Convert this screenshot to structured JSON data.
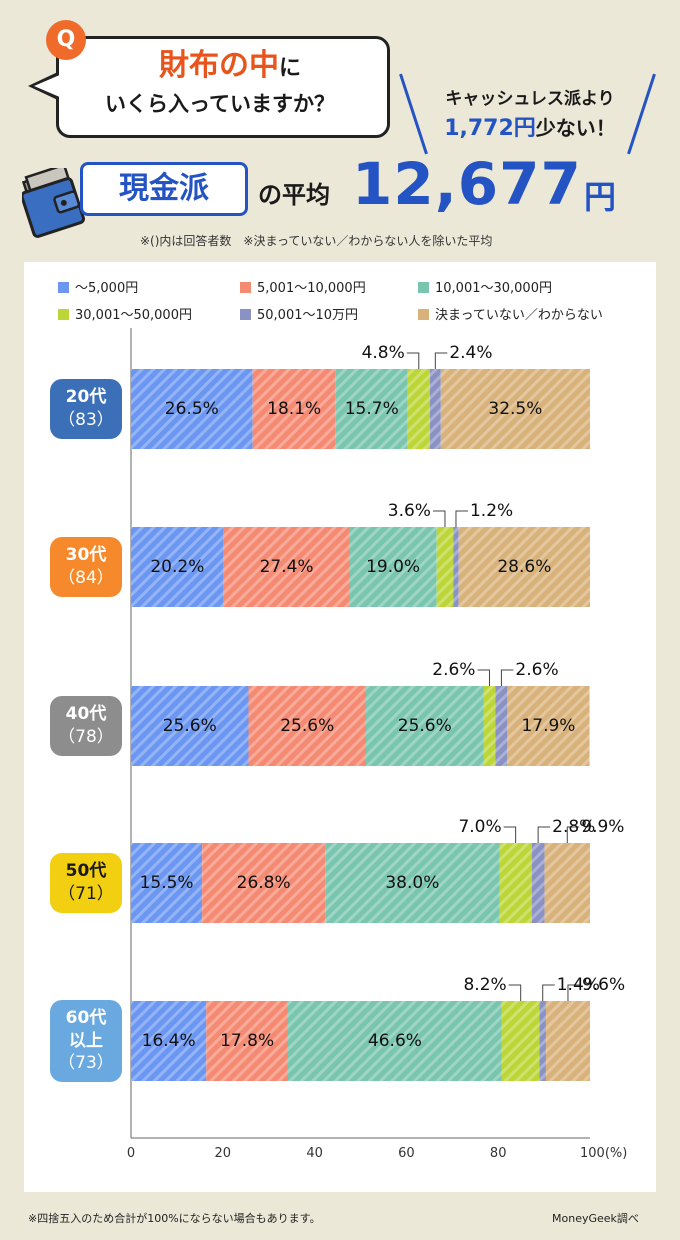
{
  "header": {
    "q_mark": "Q",
    "question_emphasis": "財布の中",
    "question_particle": "に",
    "question_line2": "いくら入っていますか？",
    "cashless_line1": "キャッシュレス派より",
    "cashless_amount": "1,772円",
    "cashless_suffix": "少ない！",
    "group_label": "現金派",
    "avg_label": "の平均",
    "avg_value": "12,677",
    "avg_unit": "円",
    "note": "※()内は回答者数　※決まっていない／わからない人を除いた平均"
  },
  "footer": {
    "note": "※四捨五入のため合計が100%にならない場合もあります。",
    "source": "MoneyGeek調べ"
  },
  "colors": {
    "background": "#ebe8d8",
    "accent_blue": "#2453c4",
    "accent_orange": "#f06a2a"
  },
  "chart_data": {
    "type": "bar",
    "orientation": "horizontal-stacked",
    "xlim": [
      0,
      100
    ],
    "x_ticks": [
      "0",
      "20",
      "40",
      "60",
      "80",
      "100(%)"
    ],
    "grid": false,
    "legend_position": "top",
    "categories": [
      {
        "label": "20代",
        "count": "（83）",
        "color": "#3b6fb8"
      },
      {
        "label": "30代",
        "count": "（84）",
        "color": "#f6892b"
      },
      {
        "label": "40代",
        "count": "（78）",
        "color": "#8d8d8d"
      },
      {
        "label": "50代",
        "count": "（71）",
        "color": "#f2cf11"
      },
      {
        "label": "60代以上",
        "count": "（73）",
        "color": "#6aa9e0"
      }
    ],
    "series": [
      {
        "name": "～5,000円",
        "color": "#6b97f2",
        "values": [
          26.5,
          20.2,
          25.6,
          15.5,
          16.4
        ]
      },
      {
        "name": "5,001～10,000円",
        "color": "#f58a73",
        "values": [
          18.1,
          27.4,
          25.6,
          26.8,
          17.8
        ]
      },
      {
        "name": "10,001～30,000円",
        "color": "#7ac5ae",
        "values": [
          15.7,
          19.0,
          25.6,
          38.0,
          46.6
        ]
      },
      {
        "name": "30,001～50,000円",
        "color": "#bcd638",
        "values": [
          4.8,
          3.6,
          2.6,
          7.0,
          8.2
        ]
      },
      {
        "name": "50,001～10万円",
        "color": "#8a92c4",
        "values": [
          2.4,
          1.2,
          2.6,
          2.8,
          1.4
        ]
      },
      {
        "name": "決まっていない／わからない",
        "color": "#d8b27a",
        "values": [
          32.5,
          28.6,
          17.9,
          9.9,
          9.6
        ]
      }
    ],
    "labels": [
      [
        "26.5%",
        "18.1%",
        "15.7%",
        "4.8%",
        "2.4%",
        "32.5%"
      ],
      [
        "20.2%",
        "27.4%",
        "19.0%",
        "3.6%",
        "1.2%",
        "28.6%"
      ],
      [
        "25.6%",
        "25.6%",
        "25.6%",
        "2.6%",
        "2.6%",
        "17.9%"
      ],
      [
        "15.5%",
        "26.8%",
        "38.0%",
        "7.0%",
        "2.8%",
        "9.9%"
      ],
      [
        "16.4%",
        "17.8%",
        "46.6%",
        "8.2%",
        "1.4%",
        "9.6%"
      ]
    ]
  }
}
